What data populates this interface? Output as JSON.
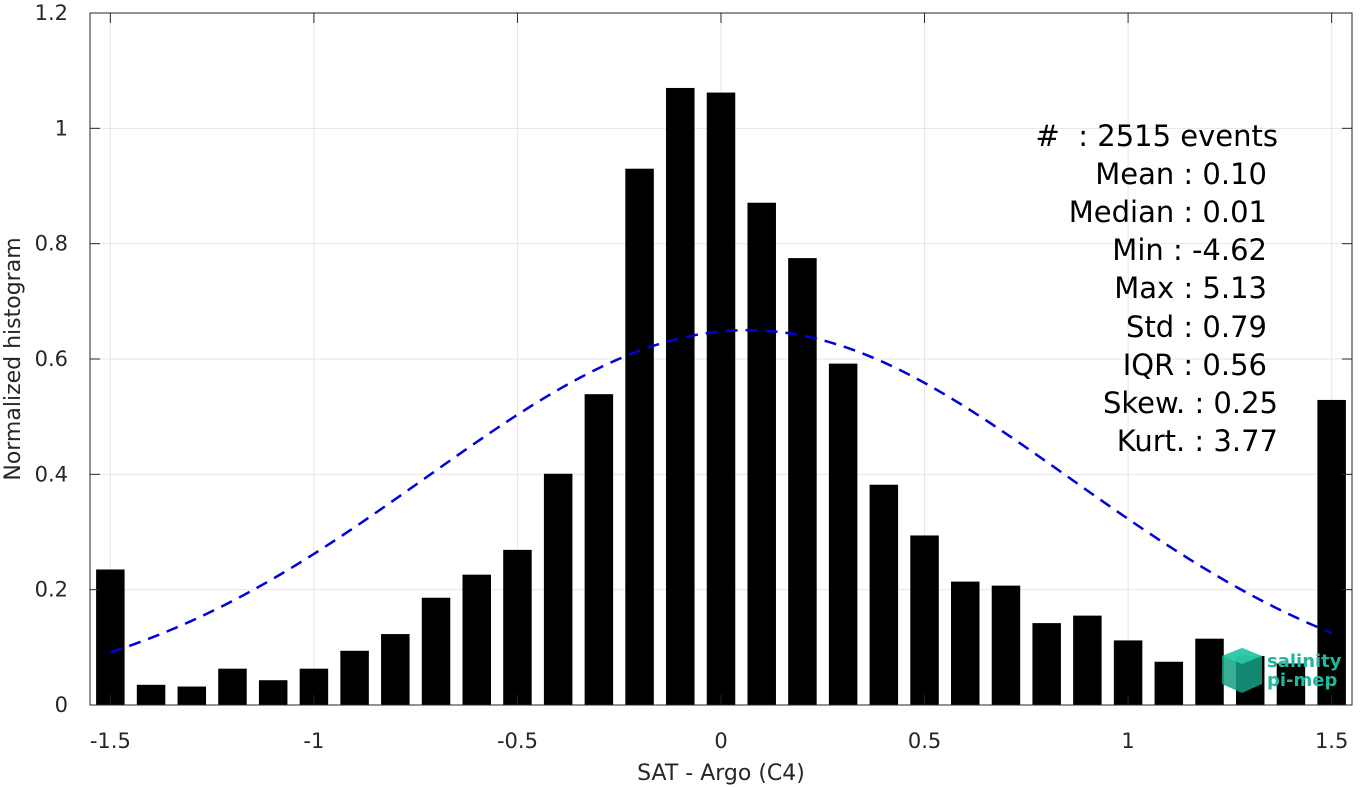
{
  "chart_data": {
    "type": "bar",
    "xlabel": "SAT - Argo (C4)",
    "ylabel": "Normalized histogram",
    "xlim": [
      -1.55,
      1.55
    ],
    "ylim": [
      0,
      1.2
    ],
    "grid": true,
    "x_ticks": [
      -1.5,
      -1,
      -0.5,
      0,
      0.5,
      1,
      1.5
    ],
    "x_tick_labels": [
      "-1.5",
      "-1",
      "-0.5",
      "0",
      "0.5",
      "1",
      "1.5"
    ],
    "y_ticks": [
      0,
      0.2,
      0.4,
      0.6,
      0.8,
      1,
      1.2
    ],
    "y_tick_labels": [
      "0",
      "0.2",
      "0.4",
      "0.6",
      "0.8",
      "1",
      "1.2"
    ],
    "bar_width": 0.07,
    "bar_color": "#000000",
    "bins": [
      -1.5,
      -1.4,
      -1.3,
      -1.2,
      -1.1,
      -1.0,
      -0.9,
      -0.8,
      -0.7,
      -0.6,
      -0.5,
      -0.4,
      -0.3,
      -0.2,
      -0.1,
      0.0,
      0.1,
      0.2,
      0.3,
      0.4,
      0.5,
      0.6,
      0.7,
      0.8,
      0.9,
      1.0,
      1.1,
      1.2,
      1.3,
      1.4,
      1.5
    ],
    "values": [
      0.235,
      0.035,
      0.032,
      0.063,
      0.043,
      0.063,
      0.094,
      0.123,
      0.186,
      0.226,
      0.269,
      0.401,
      0.539,
      0.93,
      1.07,
      1.062,
      0.871,
      0.775,
      0.592,
      0.382,
      0.294,
      0.214,
      0.207,
      0.142,
      0.155,
      0.112,
      0.075,
      0.115,
      0.085,
      0.072,
      0.529
    ],
    "fit": {
      "type": "normal",
      "mean": 0.065,
      "std": 0.79,
      "peak": 0.65,
      "color": "#0000dd",
      "style": "dashed",
      "x_range": [
        -1.5,
        1.5
      ]
    },
    "stats": {
      "count": "#  : 2515 events",
      "mean": "Mean : 0.10",
      "median": "Median : 0.01",
      "min": "Min : -4.62",
      "max": "Max : 5.13",
      "std": "Std : 0.79",
      "iqr": "IQR : 0.56",
      "skew": "Skew. : 0.25",
      "kurt": "Kurt. : 3.77"
    }
  },
  "logo": {
    "line1": "salinity",
    "line2": "pi-mep",
    "color": "#1fb89a"
  }
}
